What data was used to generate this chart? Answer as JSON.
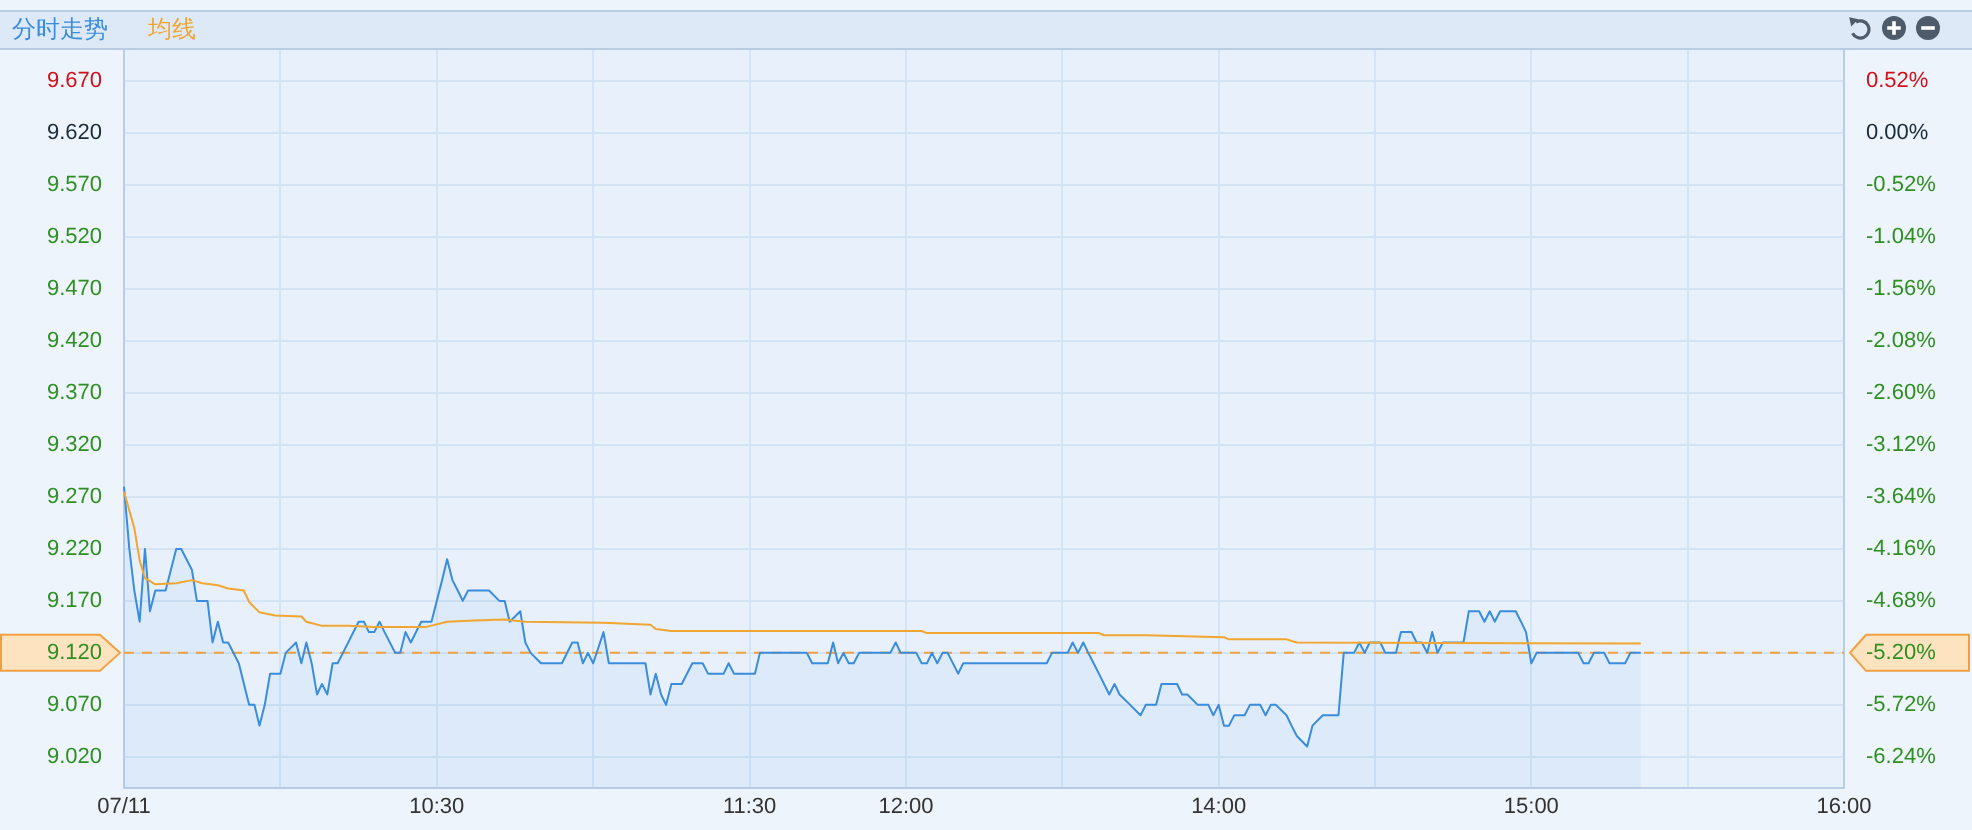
{
  "chart_data": [
    {
      "type": "line",
      "legend": "top left",
      "grid": true,
      "marker": "none",
      "xlim": [
        9.5,
        12
      ],
      "xticks": [
        {
          "value": 9.5,
          "label": "07/11"
        },
        {
          "value": 10,
          "label": null
        },
        {
          "value": 10.5,
          "label": "10:30"
        },
        {
          "value": 11,
          "label": null
        },
        {
          "value": 11.5,
          "label": "11:30"
        },
        {
          "value": 12,
          "label": "12:00"
        }
      ],
      "ylim": [
        8.99,
        9.7
      ],
      "yticks": [
        {
          "value": 9.02,
          "label": "9.020"
        },
        {
          "value": 9.07,
          "label": "9.070"
        },
        {
          "value": 9.12,
          "label": "9.120"
        },
        {
          "value": 9.17,
          "label": "9.170"
        },
        {
          "value": 9.22,
          "label": "9.220"
        },
        {
          "value": 9.27,
          "label": "9.270"
        },
        {
          "value": 9.32,
          "label": "9.320"
        },
        {
          "value": 9.37,
          "label": "9.370"
        },
        {
          "value": 9.42,
          "label": "9.420"
        },
        {
          "value": 9.47,
          "label": "9.470"
        },
        {
          "value": 9.52,
          "label": "9.520"
        },
        {
          "value": 9.57,
          "label": "9.570"
        },
        {
          "value": 9.62,
          "label": "9.620"
        },
        {
          "value": 9.67,
          "label": "9.670"
        }
      ],
      "ref_lines": [
        {
          "axis": "y",
          "value": 9.12,
          "color": "#f0a040",
          "line_style": "dashed"
        }
      ],
      "series": [
        {
          "name": "分时走势",
          "type": "area",
          "color": "#3a8cdc",
          "x": [
            9.5,
            9.517,
            9.533,
            9.55,
            9.567,
            9.583,
            9.6,
            9.633,
            9.65,
            9.667,
            9.683,
            9.717,
            9.733,
            9.767,
            9.783,
            9.8,
            9.817,
            9.833,
            9.867,
            9.9,
            9.917,
            9.933,
            9.95,
            9.967,
            10,
            10.017,
            10.05,
            10.067,
            10.083,
            10.1,
            10.117,
            10.133,
            10.15,
            10.167,
            10.183,
            10.2,
            10.25,
            10.267,
            10.283,
            10.3,
            10.317,
            10.333,
            10.367,
            10.383,
            10.4,
            10.417,
            10.45,
            10.483,
            10.517,
            10.533,
            10.55,
            10.567,
            10.583,
            10.6,
            10.667,
            10.7,
            10.717,
            10.733,
            10.767,
            10.783,
            10.8,
            10.833,
            10.9,
            10.933,
            10.95,
            10.967,
            10.983,
            11,
            11.033,
            11.05,
            11.167,
            11.183,
            11.2,
            11.217,
            11.233,
            11.25,
            11.283,
            11.317,
            11.35,
            11.367,
            11.417,
            11.433,
            11.45,
            11.517,
            11.533,
            11.683,
            11.7,
            11.75,
            11.767,
            11.783,
            11.8,
            11.817,
            11.833,
            11.85,
            11.95,
            11.967,
            11.983,
            12
          ],
          "values": [
            9.28,
            9.22,
            9.18,
            9.15,
            9.22,
            9.16,
            9.18,
            9.18,
            9.2,
            9.22,
            9.22,
            9.2,
            9.17,
            9.17,
            9.13,
            9.15,
            9.13,
            9.13,
            9.11,
            9.07,
            9.07,
            9.05,
            9.07,
            9.1,
            9.1,
            9.12,
            9.13,
            9.11,
            9.13,
            9.11,
            9.08,
            9.09,
            9.08,
            9.11,
            9.11,
            9.12,
            9.15,
            9.15,
            9.14,
            9.14,
            9.15,
            9.14,
            9.12,
            9.12,
            9.14,
            9.13,
            9.15,
            9.15,
            9.19,
            9.21,
            9.19,
            9.18,
            9.17,
            9.18,
            9.18,
            9.17,
            9.17,
            9.15,
            9.16,
            9.13,
            9.12,
            9.11,
            9.11,
            9.13,
            9.13,
            9.11,
            9.12,
            9.11,
            9.14,
            9.11,
            9.11,
            9.08,
            9.1,
            9.08,
            9.07,
            9.09,
            9.09,
            9.11,
            9.11,
            9.1,
            9.1,
            9.11,
            9.1,
            9.1,
            9.12,
            9.12,
            9.11,
            9.11,
            9.13,
            9.11,
            9.12,
            9.11,
            9.11,
            9.12,
            9.12,
            9.13,
            9.12,
            9.12
          ]
        },
        {
          "name": "均线",
          "type": "line",
          "color": "#f2a530",
          "x": [
            9.5,
            9.533,
            9.55,
            9.567,
            9.6,
            9.667,
            9.717,
            9.75,
            9.8,
            9.833,
            9.883,
            9.9,
            9.933,
            9.983,
            10.067,
            10.083,
            10.133,
            10.217,
            10.3,
            10.467,
            10.533,
            10.6,
            10.717,
            10.783,
            11.033,
            11.183,
            11.2,
            11.25,
            12
          ],
          "values": [
            9.275,
            9.24,
            9.209,
            9.192,
            9.186,
            9.187,
            9.19,
            9.187,
            9.185,
            9.182,
            9.18,
            9.169,
            9.159,
            9.156,
            9.155,
            9.15,
            9.146,
            9.146,
            9.145,
            9.145,
            9.15,
            9.151,
            9.152,
            9.15,
            9.149,
            9.147,
            9.143,
            9.141,
            9.141
          ]
        }
      ]
    },
    {
      "type": "line",
      "grid": true,
      "marker": "none",
      "xlim": [
        13,
        16
      ],
      "xticks": [
        {
          "value": 13,
          "label": null
        },
        {
          "value": 13.5,
          "label": null
        },
        {
          "value": 14,
          "label": "14:00"
        },
        {
          "value": 14.5,
          "label": null
        },
        {
          "value": 15,
          "label": "15:00"
        },
        {
          "value": 15.5,
          "label": null
        },
        {
          "value": 16,
          "label": "16:00"
        }
      ],
      "ylim": [
        8.99,
        9.7
      ],
      "y2lim": [
        -6.55,
        0.83
      ],
      "y2ticks": [
        {
          "value": -6.24,
          "label": "-6.24%"
        },
        {
          "value": -5.72,
          "label": "-5.72%"
        },
        {
          "value": -5.2,
          "label": "-5.20%"
        },
        {
          "value": -4.68,
          "label": "-4.68%"
        },
        {
          "value": -4.16,
          "label": "-4.16%"
        },
        {
          "value": -3.64,
          "label": "-3.64%"
        },
        {
          "value": -3.12,
          "label": "-3.12%"
        },
        {
          "value": -2.6,
          "label": "-2.60%"
        },
        {
          "value": -2.08,
          "label": "-2.08%"
        },
        {
          "value": -1.56,
          "label": "-1.56%"
        },
        {
          "value": -1.04,
          "label": "-1.04%"
        },
        {
          "value": -0.52,
          "label": "-0.52%"
        },
        {
          "value": 0,
          "label": "0.00%"
        },
        {
          "value": 0.52,
          "label": "0.52%"
        }
      ],
      "ref_lines": [
        {
          "axis": "y",
          "value": 9.12,
          "color": "#f0a040",
          "line_style": "dashed"
        }
      ],
      "series": [
        {
          "type": "area",
          "color": "#3a8cdc",
          "x": [
            13,
            13.033,
            13.05,
            13.067,
            13.083,
            13.1,
            13.117,
            13.133,
            13.167,
            13.183,
            13.45,
            13.467,
            13.517,
            13.533,
            13.55,
            13.567,
            13.583,
            13.6,
            13.617,
            13.65,
            13.667,
            13.683,
            13.717,
            13.75,
            13.767,
            13.8,
            13.817,
            13.867,
            13.883,
            13.9,
            13.933,
            13.967,
            13.983,
            14,
            14.017,
            14.033,
            14.05,
            14.083,
            14.1,
            14.133,
            14.15,
            14.167,
            14.183,
            14.217,
            14.233,
            14.25,
            14.283,
            14.3,
            14.333,
            14.383,
            14.4,
            14.433,
            14.45,
            14.467,
            14.483,
            14.517,
            14.533,
            14.567,
            14.583,
            14.617,
            14.633,
            14.65,
            14.667,
            14.683,
            14.7,
            14.717,
            14.783,
            14.8,
            14.833,
            14.85,
            14.867,
            14.883,
            14.9,
            14.95,
            14.967,
            14.983,
            15,
            15.017,
            15.15,
            15.167,
            15.183,
            15.2,
            15.233,
            15.25,
            15.3,
            15.317,
            15.35
          ],
          "values": [
            9.12,
            9.12,
            9.11,
            9.11,
            9.12,
            9.11,
            9.12,
            9.12,
            9.1,
            9.11,
            9.11,
            9.12,
            9.12,
            9.13,
            9.12,
            9.13,
            9.12,
            9.11,
            9.1,
            9.08,
            9.09,
            9.08,
            9.07,
            9.06,
            9.07,
            9.07,
            9.09,
            9.09,
            9.08,
            9.08,
            9.07,
            9.07,
            9.06,
            9.07,
            9.05,
            9.05,
            9.06,
            9.06,
            9.07,
            9.07,
            9.06,
            9.07,
            9.07,
            9.06,
            9.05,
            9.04,
            9.03,
            9.05,
            9.06,
            9.06,
            9.12,
            9.12,
            9.13,
            9.12,
            9.13,
            9.13,
            9.12,
            9.12,
            9.14,
            9.14,
            9.13,
            9.13,
            9.12,
            9.14,
            9.12,
            9.13,
            9.13,
            9.16,
            9.16,
            9.15,
            9.16,
            9.15,
            9.16,
            9.16,
            9.15,
            9.14,
            9.11,
            9.12,
            9.12,
            9.11,
            9.11,
            9.12,
            9.12,
            9.11,
            9.11,
            9.12,
            9.12
          ]
        },
        {
          "type": "line",
          "color": "#f2a530",
          "x": [
            13,
            13.05,
            13.067,
            13.617,
            13.633,
            13.767,
            14.017,
            14.033,
            14.217,
            14.25,
            15.35
          ],
          "values": [
            9.141,
            9.141,
            9.139,
            9.139,
            9.137,
            9.137,
            9.135,
            9.133,
            9.133,
            9.13,
            9.129
          ]
        }
      ]
    }
  ]
}
